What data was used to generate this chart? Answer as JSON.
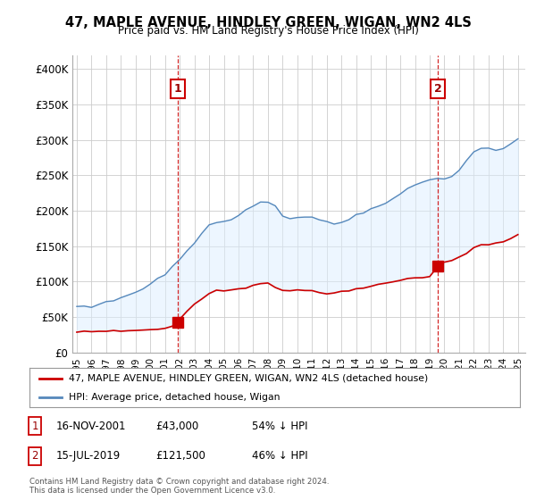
{
  "title": "47, MAPLE AVENUE, HINDLEY GREEN, WIGAN, WN2 4LS",
  "subtitle": "Price paid vs. HM Land Registry's House Price Index (HPI)",
  "ylabel_ticks": [
    "£0",
    "£50K",
    "£100K",
    "£150K",
    "£200K",
    "£250K",
    "£300K",
    "£350K",
    "£400K"
  ],
  "ytick_values": [
    0,
    50000,
    100000,
    150000,
    200000,
    250000,
    300000,
    350000,
    400000
  ],
  "ylim": [
    0,
    420000
  ],
  "xlim_start": 1994.7,
  "xlim_end": 2025.5,
  "sale1_x": 2001.88,
  "sale1_y": 43000,
  "sale2_x": 2019.54,
  "sale2_y": 121500,
  "line_color_red": "#cc0000",
  "line_color_blue": "#5588bb",
  "fill_color_blue": "#ddeeff",
  "vline_color": "#cc0000",
  "legend_label_red": "47, MAPLE AVENUE, HINDLEY GREEN, WIGAN, WN2 4LS (detached house)",
  "legend_label_blue": "HPI: Average price, detached house, Wigan",
  "footer": "Contains HM Land Registry data © Crown copyright and database right 2024.\nThis data is licensed under the Open Government Licence v3.0.",
  "background_color": "#ffffff",
  "plot_bg_color": "#ffffff",
  "grid_color": "#cccccc",
  "hpi_data_x": [
    1995.0,
    1995.5,
    1996.0,
    1996.5,
    1997.0,
    1997.5,
    1998.0,
    1998.5,
    1999.0,
    1999.5,
    2000.0,
    2000.5,
    2001.0,
    2001.5,
    2002.0,
    2002.5,
    2003.0,
    2003.5,
    2004.0,
    2004.5,
    2005.0,
    2005.5,
    2006.0,
    2006.5,
    2007.0,
    2007.5,
    2008.0,
    2008.5,
    2009.0,
    2009.5,
    2010.0,
    2010.5,
    2011.0,
    2011.5,
    2012.0,
    2012.5,
    2013.0,
    2013.5,
    2014.0,
    2014.5,
    2015.0,
    2015.5,
    2016.0,
    2016.5,
    2017.0,
    2017.5,
    2018.0,
    2018.5,
    2019.0,
    2019.5,
    2020.0,
    2020.5,
    2021.0,
    2021.5,
    2022.0,
    2022.5,
    2023.0,
    2023.5,
    2024.0,
    2024.5,
    2025.0
  ],
  "hpi_data_y": [
    63000,
    64500,
    66000,
    68000,
    71000,
    74000,
    77000,
    81000,
    85000,
    90000,
    96000,
    103000,
    111000,
    120000,
    131000,
    143000,
    156000,
    168000,
    178000,
    185000,
    188000,
    190000,
    193000,
    198000,
    205000,
    210000,
    212000,
    205000,
    193000,
    188000,
    191000,
    192000,
    191000,
    188000,
    183000,
    181000,
    183000,
    188000,
    193000,
    198000,
    202000,
    207000,
    212000,
    218000,
    225000,
    232000,
    237000,
    240000,
    243000,
    246000,
    245000,
    248000,
    258000,
    270000,
    282000,
    288000,
    285000,
    284000,
    288000,
    295000,
    302000
  ],
  "prop_data_x": [
    1995.0,
    1995.5,
    1996.0,
    1996.5,
    1997.0,
    1997.5,
    1998.0,
    1998.5,
    1999.0,
    1999.5,
    2000.0,
    2000.5,
    2001.0,
    2001.5,
    2001.88,
    2002.0,
    2002.5,
    2003.0,
    2003.5,
    2004.0,
    2004.5,
    2005.0,
    2005.5,
    2006.0,
    2006.5,
    2007.0,
    2007.5,
    2008.0,
    2008.5,
    2009.0,
    2009.5,
    2010.0,
    2010.5,
    2011.0,
    2011.5,
    2012.0,
    2012.5,
    2013.0,
    2013.5,
    2014.0,
    2014.5,
    2015.0,
    2015.5,
    2016.0,
    2016.5,
    2017.0,
    2017.5,
    2018.0,
    2018.5,
    2019.0,
    2019.54,
    2019.7,
    2020.0,
    2020.5,
    2021.0,
    2021.5,
    2022.0,
    2022.5,
    2023.0,
    2023.5,
    2024.0,
    2024.5,
    2025.0
  ],
  "prop_data_y": [
    29000,
    29500,
    29800,
    30000,
    30200,
    30500,
    30800,
    31000,
    31200,
    31500,
    32000,
    32800,
    33500,
    37000,
    43000,
    48000,
    58000,
    69000,
    76000,
    82000,
    87000,
    88000,
    88500,
    90000,
    92000,
    95000,
    97000,
    98000,
    93000,
    87000,
    87000,
    88500,
    88000,
    87000,
    84000,
    83000,
    84000,
    86000,
    88000,
    90000,
    92000,
    94000,
    96000,
    98000,
    100000,
    102000,
    104000,
    105000,
    106000,
    107000,
    121500,
    126000,
    128000,
    130000,
    135000,
    140000,
    148000,
    152000,
    153000,
    155000,
    157000,
    160000,
    165000
  ]
}
